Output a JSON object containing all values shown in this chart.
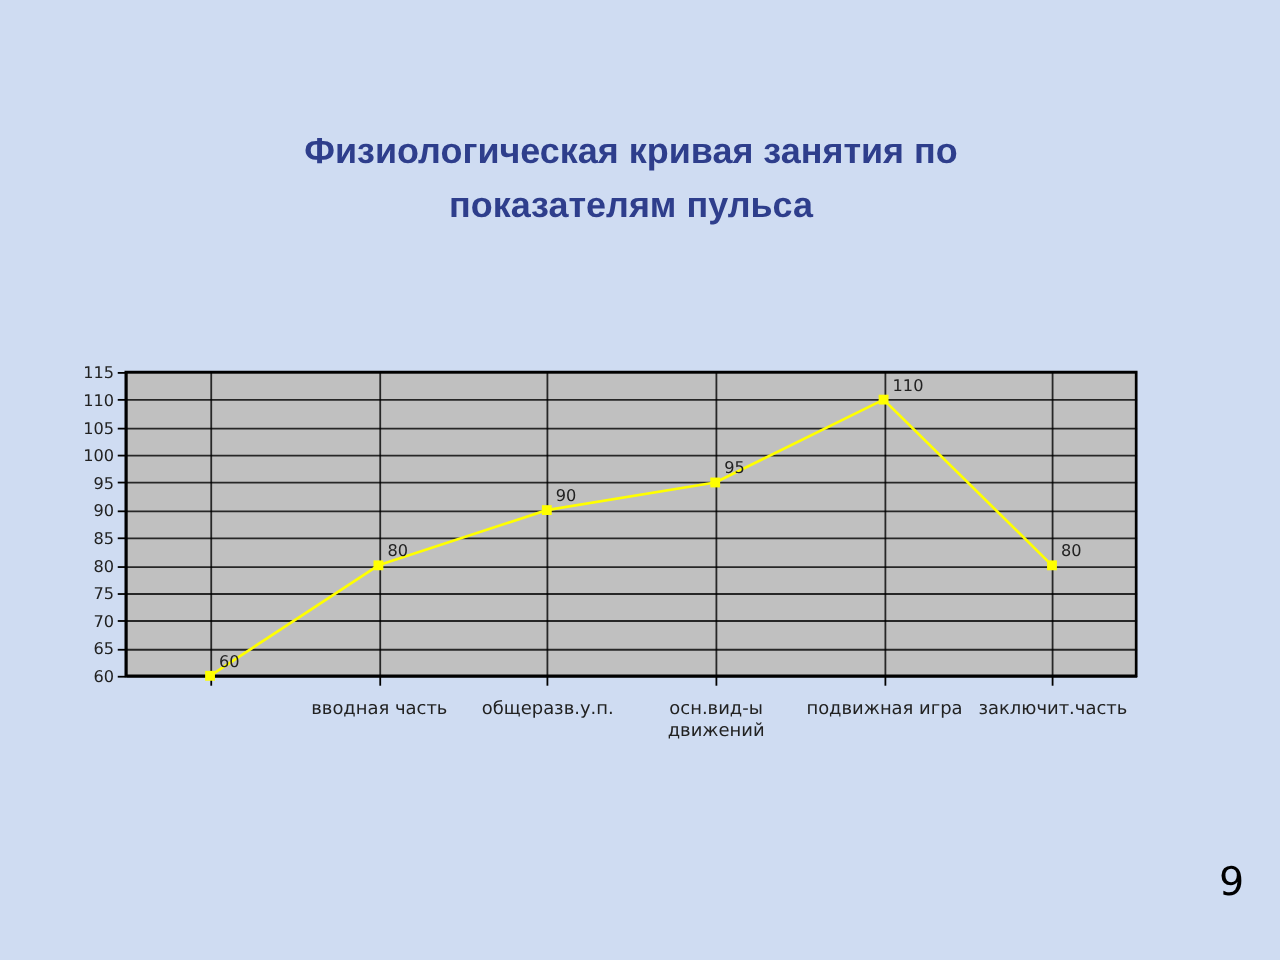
{
  "chart_data": {
    "type": "line",
    "title": "Физиологическая кривая занятия по показателям пульса",
    "categories": [
      null,
      "вводная часть",
      "общеразв.у.п.",
      "осн.вид-ы движений",
      "подвижная игра",
      "заключит.часть"
    ],
    "series": [
      {
        "color": "#ffff00",
        "values": [
          60,
          80,
          90,
          95,
          110,
          80
        ]
      }
    ],
    "ylim": [
      60,
      115
    ],
    "yticks": [
      60,
      65,
      70,
      75,
      80,
      85,
      90,
      95,
      100,
      105,
      110,
      115
    ],
    "grid": true,
    "marker": "square",
    "data_labels": true,
    "annotations": [
      "9"
    ]
  }
}
